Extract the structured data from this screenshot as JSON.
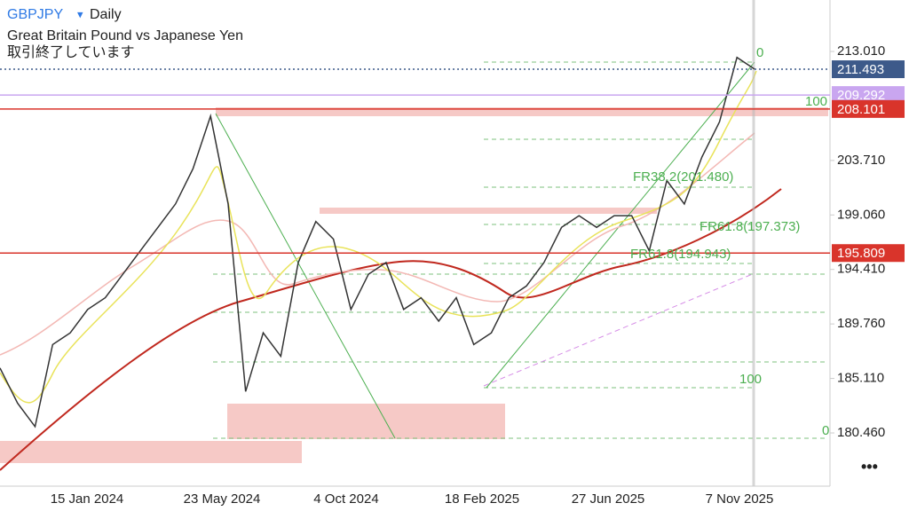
{
  "header": {
    "symbol": "GBPJPY",
    "dropdown": "▾",
    "timeframe": "Daily",
    "name": "Great Britain Pound vs Japanese Yen",
    "status": "取引終了しています"
  },
  "chart_data": {
    "type": "line",
    "ylim": [
      175.92,
      217.4
    ],
    "yticks": [
      {
        "value": 213.01,
        "label": "213.010"
      },
      {
        "value": 203.71,
        "label": "203.710"
      },
      {
        "value": 199.06,
        "label": "199.060"
      },
      {
        "value": 194.41,
        "label": "194.410"
      },
      {
        "value": 189.76,
        "label": "189.760"
      },
      {
        "value": 185.11,
        "label": "185.110"
      },
      {
        "value": 180.46,
        "label": "180.460"
      }
    ],
    "x_labels": [
      "15 Jan 2024",
      "23 May 2024",
      "4 Oct 2024",
      "18 Feb 2025",
      "27 Jun 2025",
      "7 Nov 2025"
    ],
    "price": {
      "color": "#333333",
      "values": [
        186,
        183,
        181,
        188,
        189,
        191,
        192,
        194,
        196,
        198,
        200,
        203,
        207.5,
        200,
        184,
        189,
        187,
        195,
        198.5,
        197,
        191,
        194,
        195,
        191,
        192,
        190,
        192,
        188,
        189,
        192,
        193,
        195,
        198,
        199,
        198,
        199,
        199,
        196,
        202,
        200,
        204,
        207,
        212.5,
        211.5
      ]
    },
    "price_lines": [
      {
        "value": 211.493,
        "color": "#3d5a8a",
        "style": "dotted"
      },
      {
        "value": 209.292,
        "color": "#c9a6f0",
        "style": "solid"
      },
      {
        "value": 208.101,
        "color": "#d9342b",
        "style": "solid"
      },
      {
        "value": 195.809,
        "color": "#d9342b",
        "style": "solid"
      }
    ],
    "annotations": [
      "0",
      "100",
      "FR38.2(201.480)",
      "FR61.8(197.373)",
      "FR61.8(194.943)",
      "100",
      "0"
    ]
  },
  "menu": "•••"
}
